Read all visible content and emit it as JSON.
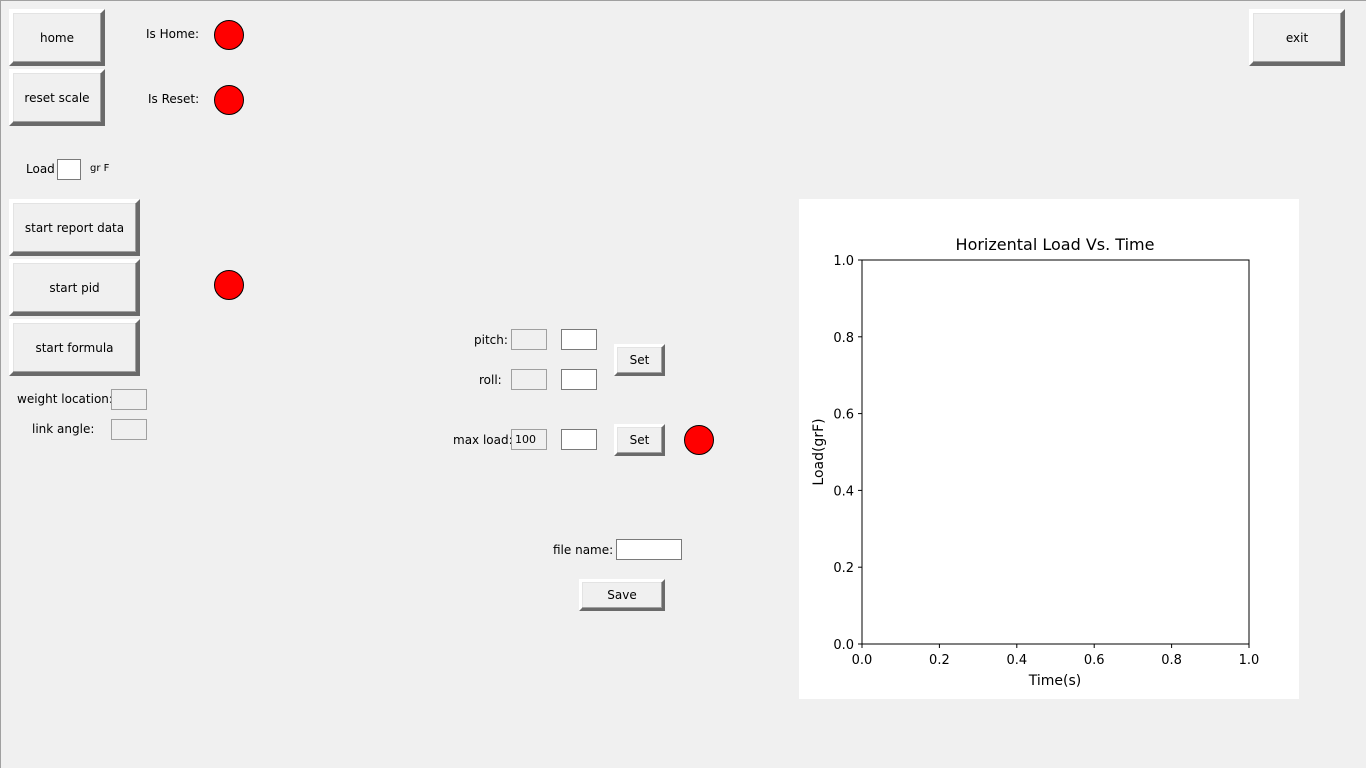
{
  "buttons": {
    "home": "home",
    "reset_scale": "reset scale",
    "start_report": "start report data",
    "start_pid": "start pid",
    "start_formula": "start formula",
    "exit": "exit",
    "set_angles": "Set",
    "set_max_load": "Set",
    "save": "Save"
  },
  "labels": {
    "is_home": "Is Home:",
    "is_reset": "Is Reset:",
    "load": "Load",
    "load_unit": "gr F",
    "weight_location": "weight location:",
    "link_angle": "link angle:",
    "pitch": "pitch:",
    "roll": "roll:",
    "max_load": "max load:",
    "file_name": "file name:"
  },
  "fields": {
    "load": "",
    "weight_location": "",
    "link_angle": "",
    "pitch_current": "",
    "pitch_input": "",
    "roll_current": "",
    "roll_input": "",
    "max_load_current": "100",
    "max_load_input": "",
    "file_name": ""
  },
  "indicators": {
    "is_home_color": "#ff0000",
    "is_reset_color": "#ff0000",
    "pid_color": "#ff0000",
    "max_load_color": "#ff0000"
  },
  "chart_data": {
    "type": "line",
    "title": "Horizental Load Vs. Time",
    "xlabel": "Time(s)",
    "ylabel": "Load(grF)",
    "xlim": [
      0.0,
      1.0
    ],
    "ylim": [
      0.0,
      1.0
    ],
    "xticks": [
      "0.0",
      "0.2",
      "0.4",
      "0.6",
      "0.8",
      "1.0"
    ],
    "yticks": [
      "0.0",
      "0.2",
      "0.4",
      "0.6",
      "0.8",
      "1.0"
    ],
    "series": [],
    "grid": false
  }
}
